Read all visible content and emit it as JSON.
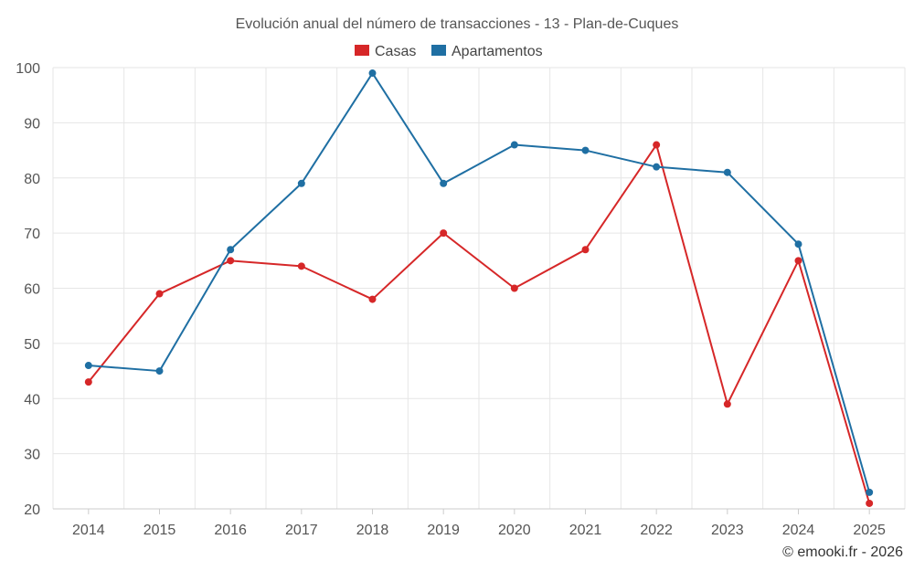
{
  "chart_data": {
    "type": "line",
    "title": "Evolución anual del número de transacciones - 13 - Plan-de-Cuques",
    "xlabel": "",
    "ylabel": "",
    "categories": [
      "2014",
      "2015",
      "2016",
      "2017",
      "2018",
      "2019",
      "2020",
      "2021",
      "2022",
      "2023",
      "2024",
      "2025"
    ],
    "ylim": [
      20,
      100
    ],
    "yticks": [
      20,
      30,
      40,
      50,
      60,
      70,
      80,
      90,
      100
    ],
    "grid": true,
    "legend_position": "top-center",
    "series": [
      {
        "name": "Casas",
        "color": "#d62728",
        "values": [
          43,
          59,
          65,
          64,
          58,
          70,
          60,
          67,
          86,
          39,
          65,
          21
        ]
      },
      {
        "name": "Apartamentos",
        "color": "#1f6fa3",
        "values": [
          46,
          45,
          67,
          79,
          99,
          79,
          86,
          85,
          82,
          81,
          68,
          23
        ]
      }
    ]
  },
  "credit": "© emooki.fr - 2026"
}
